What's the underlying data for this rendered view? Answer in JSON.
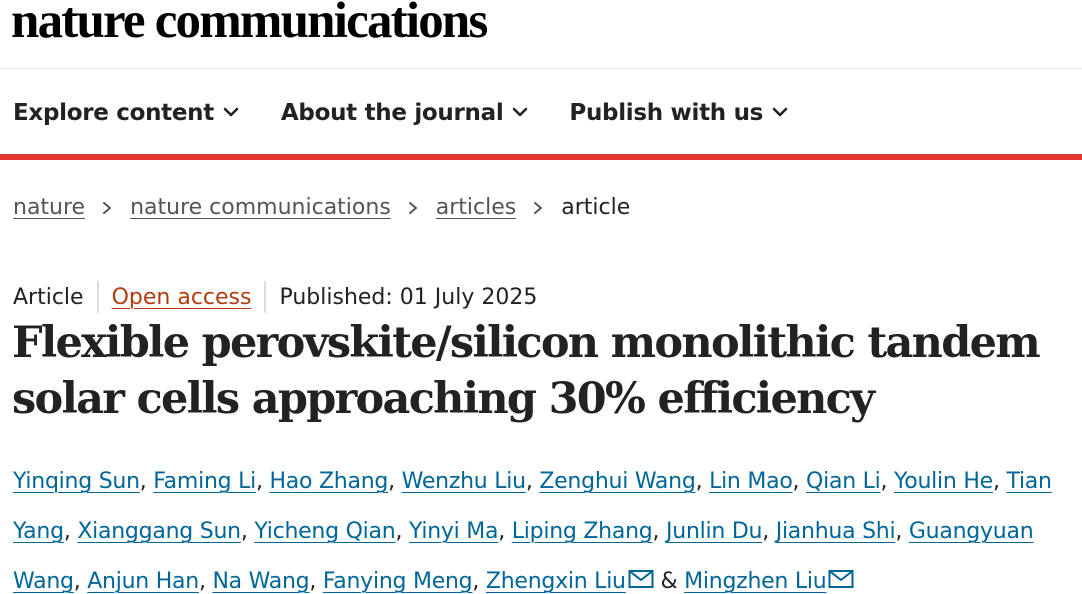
{
  "header": {
    "logo_text": "nature communications"
  },
  "nav": {
    "items": [
      {
        "label": "Explore content"
      },
      {
        "label": "About the journal"
      },
      {
        "label": "Publish with us"
      }
    ]
  },
  "breadcrumb": {
    "items": [
      "nature",
      "nature communications",
      "articles"
    ],
    "current": "article"
  },
  "article": {
    "type": "Article",
    "access": "Open access",
    "published": "Published: 01 July 2025",
    "title": "Flexible perovskite/silicon monolithic tandem solar cells approaching 30% efficiency",
    "authors": [
      "Yinqing Sun",
      "Faming Li",
      "Hao Zhang",
      "Wenzhu Liu",
      "Zenghui Wang",
      "Lin Mao",
      "Qian Li",
      "Youlin He",
      "Tian Yang",
      "Xianggang Sun",
      "Yicheng Qian",
      "Yinyi Ma",
      "Liping Zhang",
      "Junlin Du",
      "Jianhua Shi",
      "Guangyuan Wang",
      "Anjun Han",
      "Na Wang",
      "Fanying Meng",
      "Zhengxin Liu",
      "Mingzhen Liu"
    ],
    "conjunction": "&",
    "corresponding_icon": "envelope-icon"
  },
  "colors": {
    "accent_bar": "#e1372c",
    "author_link": "#006699",
    "open_access": "#b23c0e"
  }
}
